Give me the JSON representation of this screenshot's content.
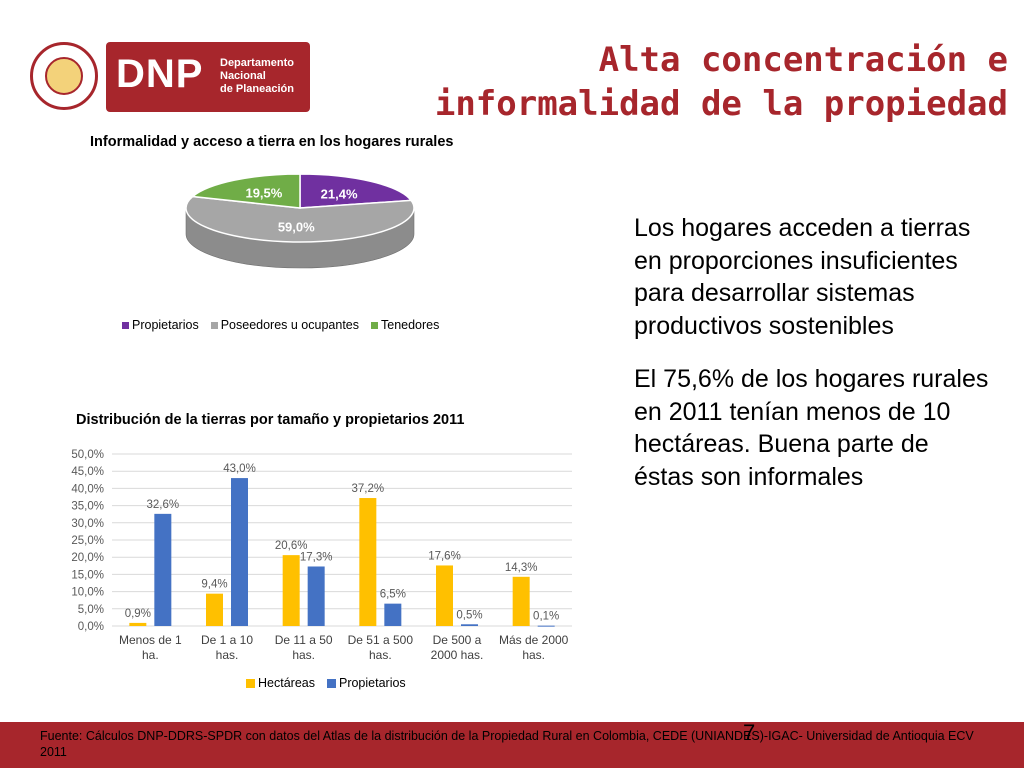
{
  "header": {
    "logo_abbr": "DNP",
    "logo_name_lines": [
      "Departamento",
      "Nacional",
      "de Planeación"
    ],
    "seal_text": "REPÚBLICA DE COLOMBIA",
    "title_lines": [
      "Alta concentración e",
      "informalidad de la propiedad"
    ]
  },
  "colors": {
    "brand": "#a7262c",
    "purple": "#7030a0",
    "gray": "#a6a6a6",
    "green": "#70ad47",
    "yellow": "#ffc000",
    "blue": "#4472c4"
  },
  "pie": {
    "title": "Informalidad y acceso a tierra en los hogares rurales",
    "labels": [
      "21,4%",
      "59,0%",
      "19,5%"
    ],
    "legend": [
      "Propietarios",
      "Poseedores u ocupantes",
      "Tenedores"
    ]
  },
  "bars": {
    "title": "Distribución de la tierras por tamaño y propietarios 2011",
    "legend": [
      "Hectáreas",
      "Propietarios"
    ]
  },
  "chart_data": [
    {
      "type": "pie",
      "title": "Informalidad y acceso a tierra en los hogares rurales",
      "categories": [
        "Propietarios",
        "Poseedores u ocupantes",
        "Tenedores"
      ],
      "values": [
        21.4,
        59.0,
        19.5
      ],
      "labels": [
        "21,4%",
        "59,0%",
        "19,5%"
      ],
      "colors": [
        "#7030a0",
        "#a6a6a6",
        "#70ad47"
      ],
      "legend_position": "bottom"
    },
    {
      "type": "bar",
      "title": "Distribución de la tierras por tamaño y propietarios 2011",
      "categories": [
        [
          "Menos de 1",
          "ha."
        ],
        [
          "De 1 a 10",
          "has."
        ],
        [
          "De 11 a 50",
          "has."
        ],
        [
          "De 51 a 500",
          "has."
        ],
        [
          "De 500 a",
          "2000 has."
        ],
        [
          "Más de 2000",
          "has."
        ]
      ],
      "series": [
        {
          "name": "Hectáreas",
          "values": [
            0.9,
            9.4,
            20.6,
            37.2,
            17.6,
            14.3
          ],
          "labels": [
            "0,9%",
            "9,4%",
            "20,6%",
            "37,2%",
            "17,6%",
            "14,3%"
          ],
          "color": "#ffc000"
        },
        {
          "name": "Propietarios",
          "values": [
            32.6,
            43.0,
            17.3,
            6.5,
            0.5,
            0.1
          ],
          "labels": [
            "32,6%",
            "43,0%",
            "17,3%",
            "6,5%",
            "0,5%",
            "0,1%"
          ],
          "color": "#4472c4"
        }
      ],
      "y_ticks": [
        "0,0%",
        "5,0%",
        "10,0%",
        "15,0%",
        "20,0%",
        "25,0%",
        "30,0%",
        "35,0%",
        "40,0%",
        "45,0%",
        "50,0%"
      ],
      "ylim": [
        0,
        50
      ],
      "grid": true,
      "legend_position": "bottom"
    }
  ],
  "body": {
    "paragraph1": "Los hogares acceden a tierras en proporciones insuficientes para desarrollar sistemas productivos sostenibles",
    "paragraph2": "El 75,6% de los hogares rurales en 2011 tenían menos de 10 hectáreas. Buena parte de éstas son informales"
  },
  "footer": {
    "source": "Fuente: Cálculos DNP-DDRS-SPDR con datos del Atlas de la distribución de la Propiedad Rural en Colombia, CEDE (UNIANDES)-IGAC- Universidad de Antioquia ECV 2011",
    "page_number": "7"
  }
}
